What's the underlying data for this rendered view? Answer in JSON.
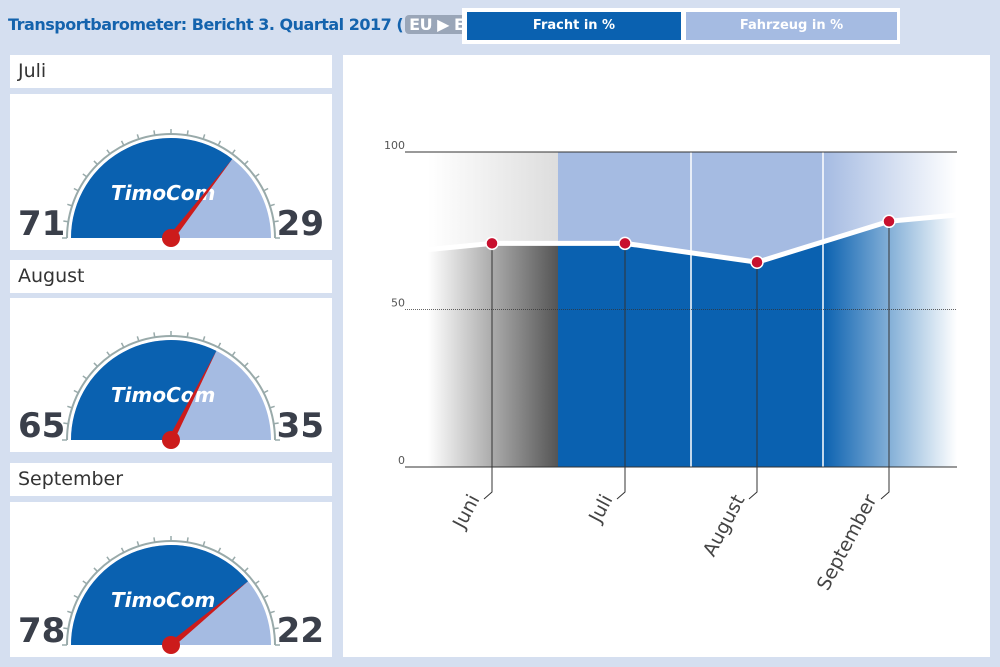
{
  "header": {
    "title": "Transportbarometer: Bericht 3. Quartal 2017 (",
    "route": "EU ▶ EU",
    "close": ")"
  },
  "tabs": [
    {
      "label": "Fracht in %",
      "active": true
    },
    {
      "label": "Fahrzeug in %",
      "active": false
    }
  ],
  "logo": "TimoCom",
  "months": [
    {
      "name": "Juli",
      "fracht": 71,
      "fahrzeug": 29
    },
    {
      "name": "August",
      "fracht": 65,
      "fahrzeug": 35
    },
    {
      "name": "September",
      "fracht": 78,
      "fahrzeug": 22
    }
  ],
  "colors": {
    "dark": "#0a61b0",
    "light": "#a5bbe2",
    "needle": "#cc1b1b",
    "gray": "#888"
  },
  "chart_data": {
    "type": "area",
    "categories": [
      "Juni",
      "Juli",
      "August",
      "September"
    ],
    "values": [
      71,
      71,
      65,
      78
    ],
    "yticks": [
      0,
      50,
      100
    ],
    "ylim": [
      0,
      100
    ],
    "grid": true
  }
}
